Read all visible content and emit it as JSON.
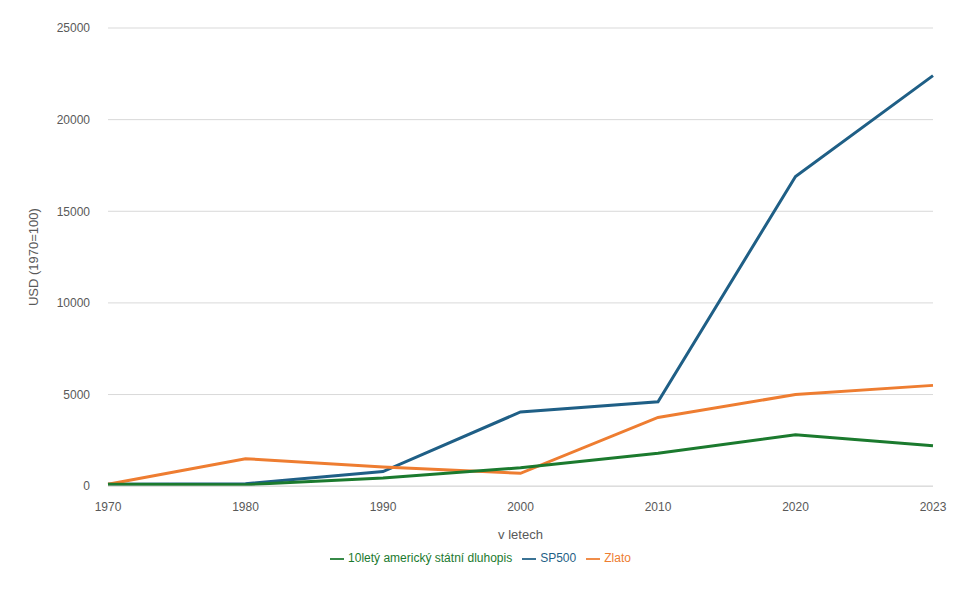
{
  "chart_data": {
    "type": "line",
    "x_label": "v letech",
    "y_label": "USD (1970=100)",
    "categories": [
      "1970",
      "1980",
      "1990",
      "2000",
      "2010",
      "2020",
      "2023"
    ],
    "series": [
      {
        "name": "SP500",
        "color": "#1f5f86",
        "values": [
          100,
          130,
          800,
          4050,
          4600,
          16900,
          22400
        ]
      },
      {
        "name": "Zlato",
        "color": "#ee7d31",
        "values": [
          100,
          1500,
          1050,
          700,
          3750,
          5000,
          5500
        ]
      },
      {
        "name": "10letý americký státní dluhopis",
        "color": "#1b7a2e",
        "values": [
          100,
          80,
          450,
          1000,
          1800,
          2800,
          2200
        ]
      }
    ],
    "ylim": [
      0,
      25000
    ],
    "yticks": [
      0,
      5000,
      10000,
      15000,
      20000,
      25000
    ],
    "grid": true,
    "legend": "bottom"
  }
}
